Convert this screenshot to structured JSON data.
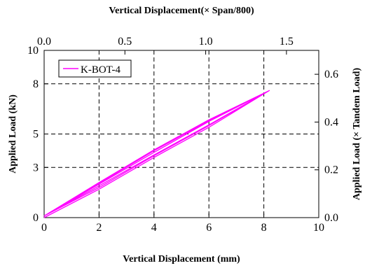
{
  "chart_data": {
    "type": "line",
    "xlabel": "Vertical Displacement (mm)",
    "ylabel": "Applied Load (kN)",
    "x2label": "Vertical Displacement(× Span/800)",
    "y2label": "Applied Load (× Tandem Load)",
    "xlim": [
      0,
      10
    ],
    "ylim": [
      0,
      10
    ],
    "x2lim": [
      0.0,
      1.7
    ],
    "y2lim": [
      0.0,
      0.7
    ],
    "xticks": [
      "0",
      "2",
      "4",
      "6",
      "8",
      "10"
    ],
    "yticks": [
      "0",
      "3",
      "5",
      "8",
      "10"
    ],
    "x2ticks": [
      "0.0",
      "0.5",
      "1.0",
      "1.5"
    ],
    "y2ticks": [
      "0.0",
      "0.2",
      "0.4",
      "0.6"
    ],
    "grid": true,
    "legend_position": "top-left",
    "series": [
      {
        "name": "K-BOT-4",
        "color": "#ff00ff",
        "x": [
          0.0,
          2.0,
          4.0,
          6.0,
          8.2,
          6.0,
          4.0,
          2.0,
          0.0,
          2.0,
          4.0,
          6.0,
          8.2,
          6.0,
          4.0,
          2.0,
          0.0,
          2.0,
          4.0,
          6.0,
          8.2,
          6.0,
          4.0,
          2.0,
          0.0
        ],
        "y": [
          0.0,
          1.7,
          3.6,
          5.4,
          7.6,
          5.75,
          3.9,
          2.0,
          0.1,
          1.8,
          3.7,
          5.5,
          7.6,
          5.8,
          4.0,
          2.05,
          0.1,
          1.9,
          3.75,
          5.55,
          7.6,
          5.85,
          4.05,
          2.1,
          0.1
        ]
      }
    ]
  }
}
